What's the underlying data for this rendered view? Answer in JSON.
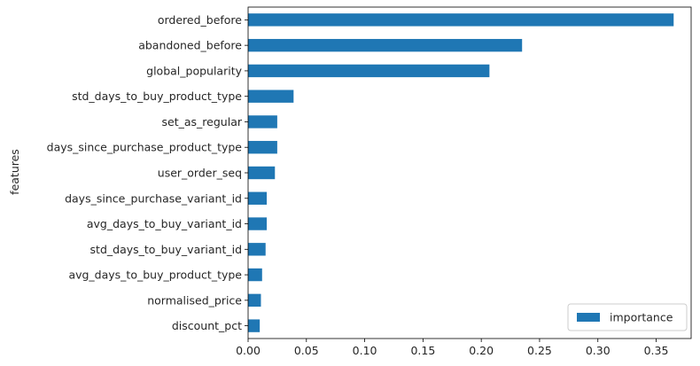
{
  "chart_data": {
    "type": "bar",
    "orientation": "horizontal",
    "title": "",
    "xlabel": "",
    "ylabel": "features",
    "xlim": [
      0,
      0.38
    ],
    "xticks": [
      0.0,
      0.05,
      0.1,
      0.15,
      0.2,
      0.25,
      0.3,
      0.35
    ],
    "xtick_labels": [
      "0.00",
      "0.05",
      "0.10",
      "0.15",
      "0.20",
      "0.25",
      "0.30",
      "0.35"
    ],
    "grid": false,
    "legend_position": "bottom-right",
    "bar_color": "#1f77b4",
    "categories": [
      "discount_pct",
      "normalised_price",
      "avg_days_to_buy_product_type",
      "std_days_to_buy_variant_id",
      "avg_days_to_buy_variant_id",
      "days_since_purchase_variant_id",
      "user_order_seq",
      "days_since_purchase_product_type",
      "set_as_regular",
      "std_days_to_buy_product_type",
      "global_popularity",
      "abandoned_before",
      "ordered_before"
    ],
    "series": [
      {
        "name": "importance",
        "values": [
          0.01,
          0.011,
          0.012,
          0.015,
          0.016,
          0.016,
          0.023,
          0.025,
          0.025,
          0.039,
          0.207,
          0.235,
          0.365
        ]
      }
    ]
  }
}
